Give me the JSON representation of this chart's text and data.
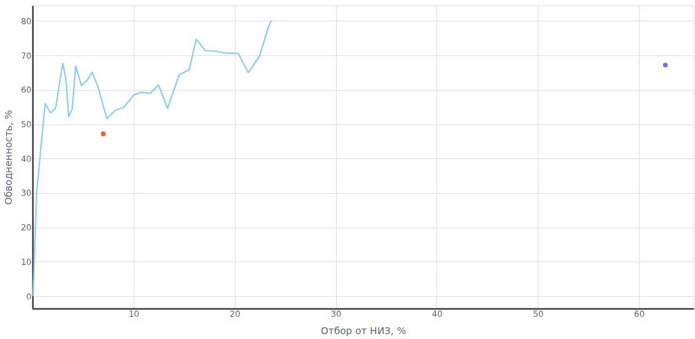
{
  "chart_data": {
    "type": "line",
    "xlabel": "Отбор от НИЗ, %",
    "ylabel": "Обводненность, %",
    "xlim": [
      0,
      65.4
    ],
    "ylim": [
      -3.6,
      84.5
    ],
    "xticks": [
      10,
      20,
      30,
      40,
      50,
      60
    ],
    "yticks": [
      0,
      10,
      20,
      30,
      40,
      50,
      60,
      70,
      80
    ],
    "grid": true,
    "series": [
      {
        "color": "#87ceeb",
        "x": [
          0.05,
          0.4,
          1.24,
          1.78,
          2.28,
          2.98,
          3.29,
          3.57,
          3.92,
          4.26,
          4.84,
          5.42,
          5.89,
          6.47,
          7.35,
          8.17,
          9.02,
          10.0,
          10.77,
          11.65,
          12.46,
          13.35,
          14.5,
          15.5,
          16.18,
          17.1,
          18.0,
          19.08,
          20.36,
          21.34,
          22.45,
          23.38,
          23.65
        ],
        "values": [
          0,
          30,
          56,
          53.3,
          54.7,
          67.7,
          63.3,
          52.3,
          54.4,
          66.9,
          61.2,
          62.9,
          65.1,
          60.9,
          51.6,
          54,
          54.9,
          58.5,
          59.3,
          59,
          61.4,
          54.6,
          64.3,
          65.9,
          74.7,
          71.4,
          71.3,
          70.7,
          70.5,
          65,
          69.8,
          78.7,
          80.2
        ]
      },
      {
        "type": "scatter",
        "color": "#ef553b",
        "x": [
          7.0
        ],
        "values": [
          47.2
        ]
      },
      {
        "type": "scatter",
        "color": "#636efa",
        "x": [
          62.6
        ],
        "values": [
          67.2
        ]
      }
    ]
  }
}
